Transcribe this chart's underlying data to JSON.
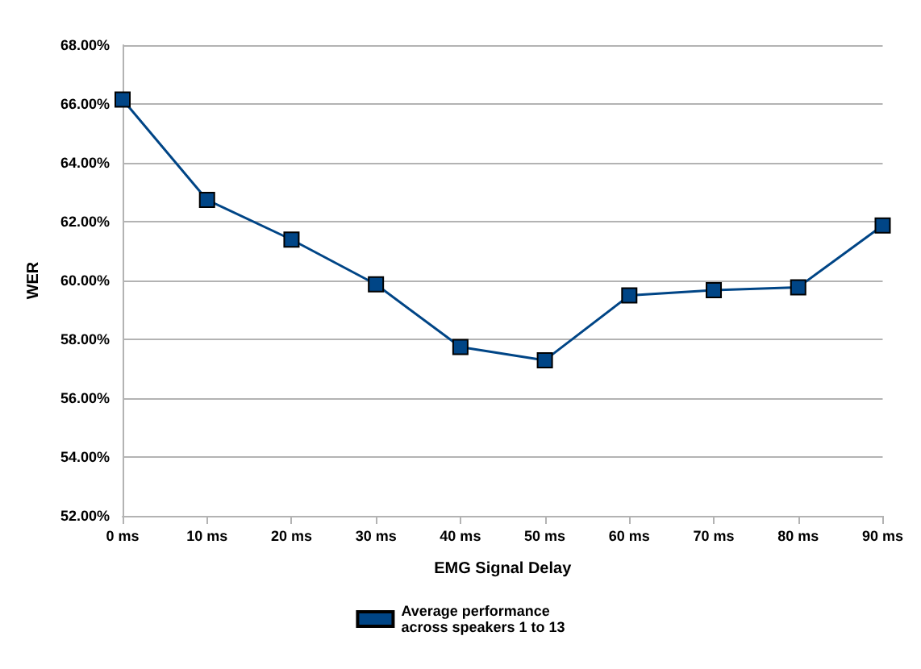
{
  "chart_data": {
    "type": "line",
    "xlabel": "EMG Signal Delay",
    "ylabel": "WER",
    "categories": [
      "0 ms",
      "10 ms",
      "20 ms",
      "30 ms",
      "40 ms",
      "50 ms",
      "60 ms",
      "70 ms",
      "80 ms",
      "90 ms"
    ],
    "series": [
      {
        "name": "Average performance\nacross speakers 1 to 13",
        "color": "#004586",
        "values": [
          66.15,
          62.74,
          61.39,
          59.87,
          57.74,
          57.29,
          59.49,
          59.67,
          59.77,
          61.87
        ]
      }
    ],
    "ylim": [
      52,
      68
    ],
    "yticks": [
      {
        "value": 52,
        "label": "52.00%"
      },
      {
        "value": 54,
        "label": "54.00%"
      },
      {
        "value": 56,
        "label": "56.00%"
      },
      {
        "value": 58,
        "label": "58.00%"
      },
      {
        "value": 60,
        "label": "60.00%"
      },
      {
        "value": 62,
        "label": "62.00%"
      },
      {
        "value": 64,
        "label": "64.00%"
      },
      {
        "value": 66,
        "label": "66.00%"
      },
      {
        "value": 68,
        "label": "68.00%"
      }
    ],
    "grid": "y",
    "legend": "bottom",
    "marker": "square",
    "line_style": "solid"
  }
}
